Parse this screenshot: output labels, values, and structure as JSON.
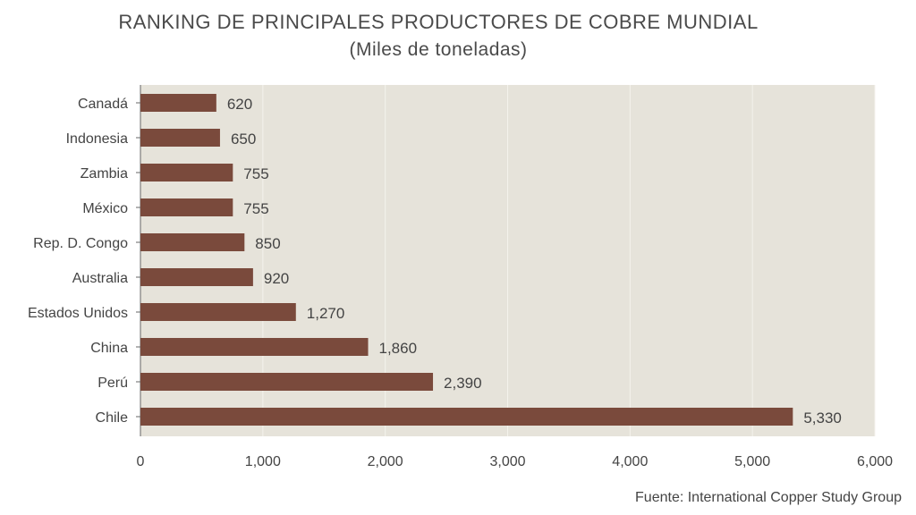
{
  "chart_data": {
    "type": "bar",
    "orientation": "horizontal",
    "title": "RANKING DE PRINCIPALES PRODUCTORES DE COBRE MUNDIAL",
    "subtitle": "(Miles de toneladas)",
    "categories": [
      "Canadá",
      "Indonesia",
      "Zambia",
      "México",
      "Rep. D. Congo",
      "Australia",
      "Estados Unidos",
      "China",
      "Perú",
      "Chile"
    ],
    "values": [
      620,
      650,
      755,
      755,
      850,
      920,
      1270,
      1860,
      2390,
      5330
    ],
    "value_labels": [
      "620",
      "650",
      "755",
      "755",
      "850",
      "920",
      "1,270",
      "1,860",
      "2,390",
      "5,330"
    ],
    "xlim": [
      0,
      6000
    ],
    "x_ticks": [
      0,
      1000,
      2000,
      3000,
      4000,
      5000,
      6000
    ],
    "x_tick_labels": [
      "0",
      "1,000",
      "2,000",
      "3,000",
      "4,000",
      "5,000",
      "6,000"
    ],
    "xlabel": "",
    "ylabel": "",
    "grid": true,
    "legend": "none",
    "colors": {
      "bar": "#7a4a3c",
      "plot_background": "#e6e3da",
      "gridline": "#f4f2ec"
    }
  },
  "source": "Fuente: International Copper Study Group"
}
